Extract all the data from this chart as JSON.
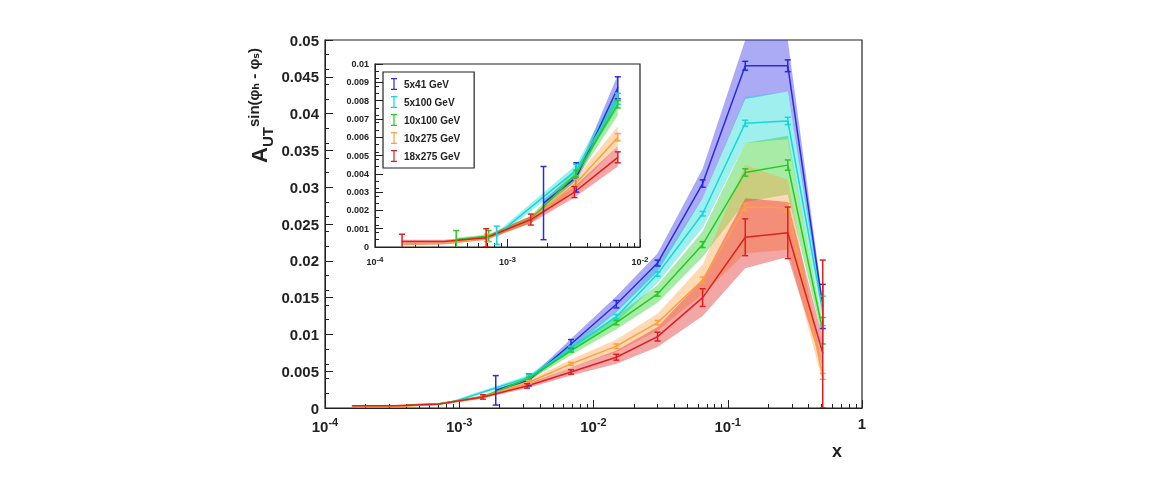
{
  "chart_data": [
    {
      "type": "line",
      "xlabel": "x",
      "ylabel": "A$_{UT}$$^{sin(φₕ - φₛ)}$",
      "log": "x",
      "marker": "none",
      "line_style": "solid",
      "grid": false,
      "legend": false,
      "xlim": [
        0.0001,
        1
      ],
      "xticks": [
        {
          "value": 0.0001,
          "label": "10$^{-4}$"
        },
        {
          "value": 0.001,
          "label": "10$^{-3}$"
        },
        {
          "value": 0.01,
          "label": "10$^{-2}$"
        },
        {
          "value": 0.1,
          "label": "10$^{-1}$"
        },
        1
      ],
      "ylim": [
        0,
        0.05
      ],
      "yticks": [
        0,
        0.005,
        0.01,
        0.015,
        0.02,
        0.025,
        0.03,
        0.035,
        0.04,
        0.045,
        0.05
      ],
      "series": [
        {
          "color": "#2a2ae6",
          "x": [
            0.00187,
            0.0033,
            0.0068,
            0.0148,
            0.03,
            0.065,
            0.135,
            0.28,
            0.51
          ],
          "values": [
            0.0024,
            0.0038,
            0.0087,
            0.0141,
            0.0197,
            0.0305,
            0.0465,
            0.0465,
            0.0138
          ],
          "errors": [
            0.002,
            0.0008,
            0.0006,
            0.0005,
            0.0004,
            0.0005,
            0.0006,
            0.0008,
            0.003
          ],
          "lower": [
            0.0022,
            0.0036,
            0.008,
            0.013,
            0.0185,
            0.0285,
            0.042,
            0.043,
            0.013
          ],
          "upper": [
            0.0026,
            0.004,
            0.0094,
            0.0152,
            0.021,
            0.0325,
            0.05,
            0.05,
            0.0146
          ]
        },
        {
          "color": "#12d8d8",
          "x": [
            0.00083,
            0.0033,
            0.0068,
            0.0148,
            0.03,
            0.065,
            0.135,
            0.28,
            0.51
          ],
          "values": [
            0.0006,
            0.0042,
            0.0081,
            0.0124,
            0.0182,
            0.0264,
            0.0387,
            0.039,
            0.0132
          ],
          "errors": [
            null,
            0.0003,
            0.0003,
            0.0003,
            0.0003,
            0.0003,
            0.0004,
            0.0005,
            0.002
          ],
          "lower": [
            0.0005,
            0.0039,
            0.0076,
            0.0116,
            0.017,
            0.0245,
            0.036,
            0.0365,
            0.012
          ],
          "upper": [
            0.0008,
            0.0045,
            0.0087,
            0.0132,
            0.0195,
            0.0285,
            0.0423,
            0.043,
            0.0144
          ]
        },
        {
          "color": "#22cc22",
          "x": [
            0.00041,
            0.00072,
            0.0015,
            0.0033,
            0.0068,
            0.0148,
            0.03,
            0.065,
            0.135,
            0.28,
            0.51
          ],
          "values": [
            0.0004,
            0.0006,
            0.0015,
            0.004,
            0.0078,
            0.0116,
            0.0155,
            0.0222,
            0.032,
            0.033,
            0.0105
          ],
          "errors": [
            null,
            null,
            null,
            0.0002,
            0.0002,
            0.0003,
            0.0003,
            0.0004,
            0.0005,
            0.0007,
            0.0018
          ],
          "lower": [
            0.0003,
            0.0005,
            0.0013,
            0.0037,
            0.0072,
            0.0107,
            0.0143,
            0.0205,
            0.028,
            0.029,
            0.0095
          ],
          "upper": [
            0.0005,
            0.0007,
            0.0017,
            0.0043,
            0.0084,
            0.0125,
            0.0167,
            0.024,
            0.036,
            0.037,
            0.0115
          ]
        },
        {
          "color": "#ffa040",
          "x": [
            0.00017,
            0.00035,
            0.0007,
            0.0015,
            0.0033,
            0.0068,
            0.0148,
            0.03,
            0.065,
            0.135,
            0.28,
            0.51
          ],
          "values": [
            0.0002,
            0.0002,
            0.0005,
            0.0015,
            0.0035,
            0.006,
            0.0084,
            0.0116,
            0.0174,
            0.0273,
            0.0272,
            0.0043
          ],
          "errors": [
            null,
            null,
            null,
            null,
            0.0002,
            0.0002,
            0.0003,
            0.0003,
            0.0004,
            0.0005,
            0.0006,
            0.0004
          ],
          "lower": [
            0.0001,
            0.00015,
            0.0004,
            0.0013,
            0.0032,
            0.0055,
            0.0076,
            0.0105,
            0.0155,
            0.021,
            0.0215,
            0.0035
          ],
          "upper": [
            0.0002,
            0.00025,
            0.0006,
            0.0017,
            0.0038,
            0.0066,
            0.0093,
            0.0128,
            0.0195,
            0.033,
            0.031,
            0.0051
          ]
        },
        {
          "color": "#e02020",
          "x": [
            0.00016,
            0.00033,
            0.00069,
            0.0015,
            0.0032,
            0.0068,
            0.0148,
            0.03,
            0.065,
            0.135,
            0.28,
            0.51
          ],
          "values": [
            0.0003,
            0.0003,
            0.0005,
            0.0015,
            0.003,
            0.0049,
            0.0069,
            0.0097,
            0.015,
            0.0232,
            0.0238,
            0.0075
          ],
          "errors": [
            null,
            null,
            null,
            0.0003,
            0.0003,
            0.0003,
            0.0004,
            0.0006,
            0.0012,
            0.0025,
            0.0035,
            [
              0,
              0.0201
            ]
          ],
          "lower": [
            0.0001,
            0.00015,
            0.0004,
            0.0013,
            0.0027,
            0.0044,
            0.006,
            0.0083,
            0.0125,
            0.019,
            0.0205,
            0.0055
          ],
          "upper": [
            0.0004,
            0.0004,
            0.0006,
            0.0017,
            0.0033,
            0.0055,
            0.0078,
            0.011,
            0.0175,
            0.0285,
            0.028,
            0.0095
          ]
        }
      ]
    },
    {
      "type": "line",
      "log": "x",
      "marker": "none",
      "line_style": "solid",
      "grid": false,
      "legend": "top left",
      "xlim": [
        0.0001,
        0.01
      ],
      "xticks": [
        {
          "value": 0.0001,
          "label": "10$^{-4}$"
        },
        {
          "value": 0.001,
          "label": "10$^{-3}$"
        },
        {
          "value": 0.01,
          "label": "10$^{-2}$"
        }
      ],
      "ylim": [
        0,
        0.01
      ],
      "yticks": [
        0,
        0.001,
        0.002,
        0.003,
        0.004,
        0.005,
        0.006,
        0.007,
        0.008,
        0.009,
        0.01
      ],
      "series": [
        {
          "name": "5x41 GeV",
          "color": "#2a2ae6",
          "x": [
            0.00187,
            0.0033,
            0.0068
          ],
          "values": [
            0.0024,
            0.0038,
            0.0087
          ],
          "errors": [
            0.002,
            0.0008,
            0.0006
          ],
          "lower": [
            0.0022,
            0.0036,
            0.008
          ],
          "upper": [
            0.0026,
            0.004,
            0.0094
          ]
        },
        {
          "name": "5x100 GeV",
          "color": "#12d8d8",
          "x": [
            0.00083,
            0.0033,
            0.0068
          ],
          "values": [
            0.00064,
            0.0042,
            0.0081
          ],
          "errors": [
            0.0005,
            0.0003,
            0.0003
          ],
          "lower": [
            0.0005,
            0.0039,
            0.0076
          ],
          "upper": [
            0.0008,
            0.0045,
            0.0087
          ]
        },
        {
          "name": "10x100 GeV",
          "color": "#22cc22",
          "x": [
            0.00041,
            0.00072,
            0.0015,
            0.0033,
            0.0068
          ],
          "values": [
            0.0004,
            0.0006,
            0.0015,
            0.004,
            0.0078
          ],
          "errors": [
            0.0005,
            0.0003,
            null,
            0.0002,
            0.0002
          ],
          "lower": [
            0.0003,
            0.0005,
            0.0013,
            0.0037,
            0.0072
          ],
          "upper": [
            0.0005,
            0.0007,
            0.0017,
            0.0043,
            0.0084
          ]
        },
        {
          "name": "10x275 GeV",
          "color": "#ffa040",
          "x": [
            0.00017,
            0.00035,
            0.0007,
            0.0015,
            0.0033,
            0.0068
          ],
          "values": [
            0.00015,
            0.0002,
            0.0005,
            0.0015,
            0.0035,
            0.006
          ],
          "errors": [
            null,
            null,
            0.0002,
            null,
            0.0002,
            0.0002
          ],
          "lower": [
            0.0001,
            0.00015,
            0.0004,
            0.0013,
            0.0032,
            0.0055
          ],
          "upper": [
            0.0002,
            0.00025,
            0.0006,
            0.0017,
            0.0038,
            0.0066
          ]
        },
        {
          "name": "18x275 GeV",
          "color": "#e02020",
          "x": [
            0.00016,
            0.00033,
            0.00069,
            0.0015,
            0.0032,
            0.0068
          ],
          "values": [
            0.0003,
            0.0003,
            0.0005,
            0.0015,
            0.003,
            0.0049
          ],
          "errors": [
            0.0004,
            null,
            0.0005,
            0.0003,
            0.0003,
            0.0003
          ],
          "lower": [
            0.0001,
            0.00015,
            0.0004,
            0.0013,
            0.0027,
            0.0044
          ],
          "upper": [
            0.0004,
            0.0004,
            0.0006,
            0.0017,
            0.0033,
            0.0055
          ]
        }
      ]
    }
  ]
}
